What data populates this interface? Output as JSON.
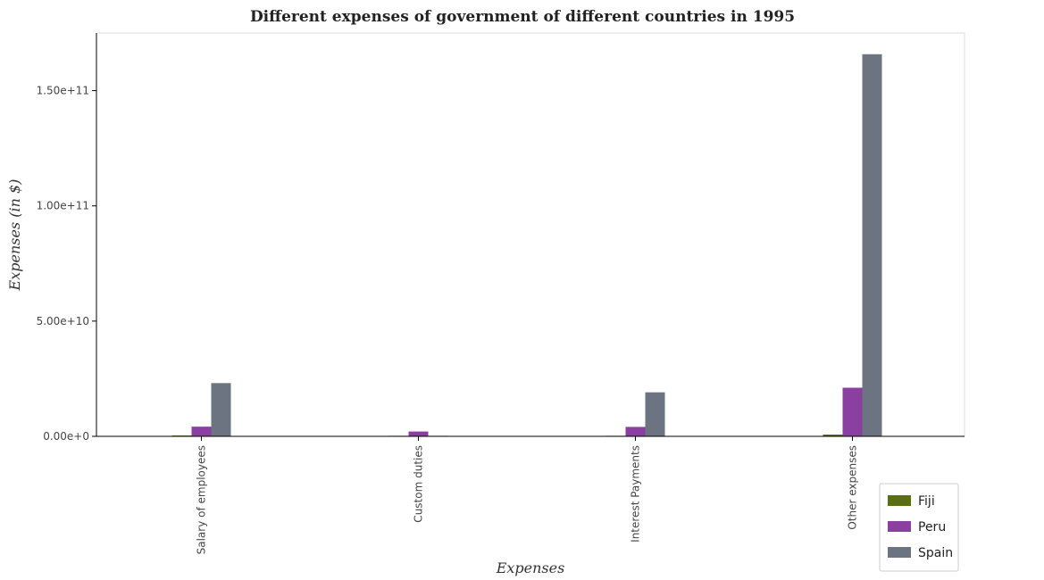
{
  "chart_data": {
    "type": "bar",
    "title": "Different expenses of government of different countries in 1995",
    "xlabel": "Expenses",
    "ylabel": "Expenses (in $)",
    "categories": [
      "Salary of employees",
      "Custom duties",
      "Interest Payments",
      "Other expenses"
    ],
    "ylim": [
      0,
      175000000000
    ],
    "yticks": [
      0,
      50000000000,
      100000000000,
      150000000000
    ],
    "ytick_labels": [
      "0.00e+0",
      "5.00e+10",
      "1.00e+11",
      "1.50e+11"
    ],
    "grid": false,
    "legend_position": "bottom-right",
    "series": [
      {
        "name": "Fiji",
        "color": "#5a6e12",
        "values": [
          350000000,
          150000000,
          100000000,
          750000000
        ]
      },
      {
        "name": "Peru",
        "color": "#8b3fa0",
        "values": [
          4200000000,
          2100000000,
          4100000000,
          21100000000
        ]
      },
      {
        "name": "Spain",
        "color": "#6b7480",
        "values": [
          23100000000,
          10000000,
          19100000000,
          165800000000
        ]
      }
    ]
  }
}
